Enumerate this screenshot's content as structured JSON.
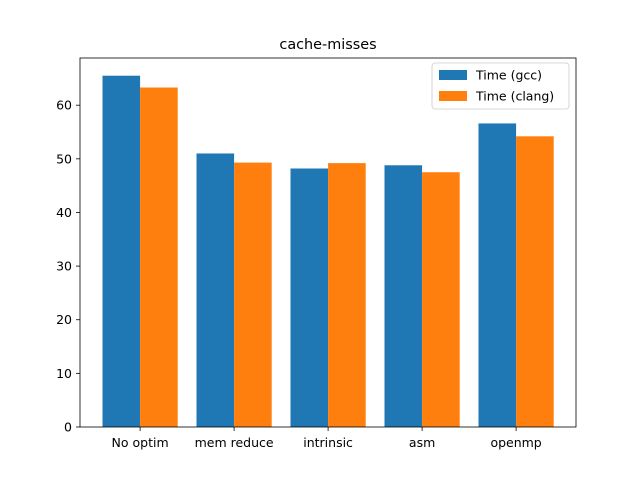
{
  "chart_data": {
    "type": "bar",
    "title": "cache-misses",
    "xlabel": "",
    "ylabel": "",
    "categories": [
      "No optim",
      "mem reduce",
      "intrinsic",
      "asm",
      "openmp"
    ],
    "series": [
      {
        "name": "Time (gcc)",
        "color": "#1f77b4",
        "values": [
          65.5,
          51.0,
          48.2,
          48.8,
          56.6
        ]
      },
      {
        "name": "Time (clang)",
        "color": "#ff7f0e",
        "values": [
          63.3,
          49.3,
          49.2,
          47.5,
          54.2
        ]
      }
    ],
    "ylim": [
      0,
      68.8
    ],
    "yticks": [
      0,
      10,
      20,
      30,
      40,
      50,
      60
    ],
    "grid": false,
    "legend_position": "top-right"
  }
}
